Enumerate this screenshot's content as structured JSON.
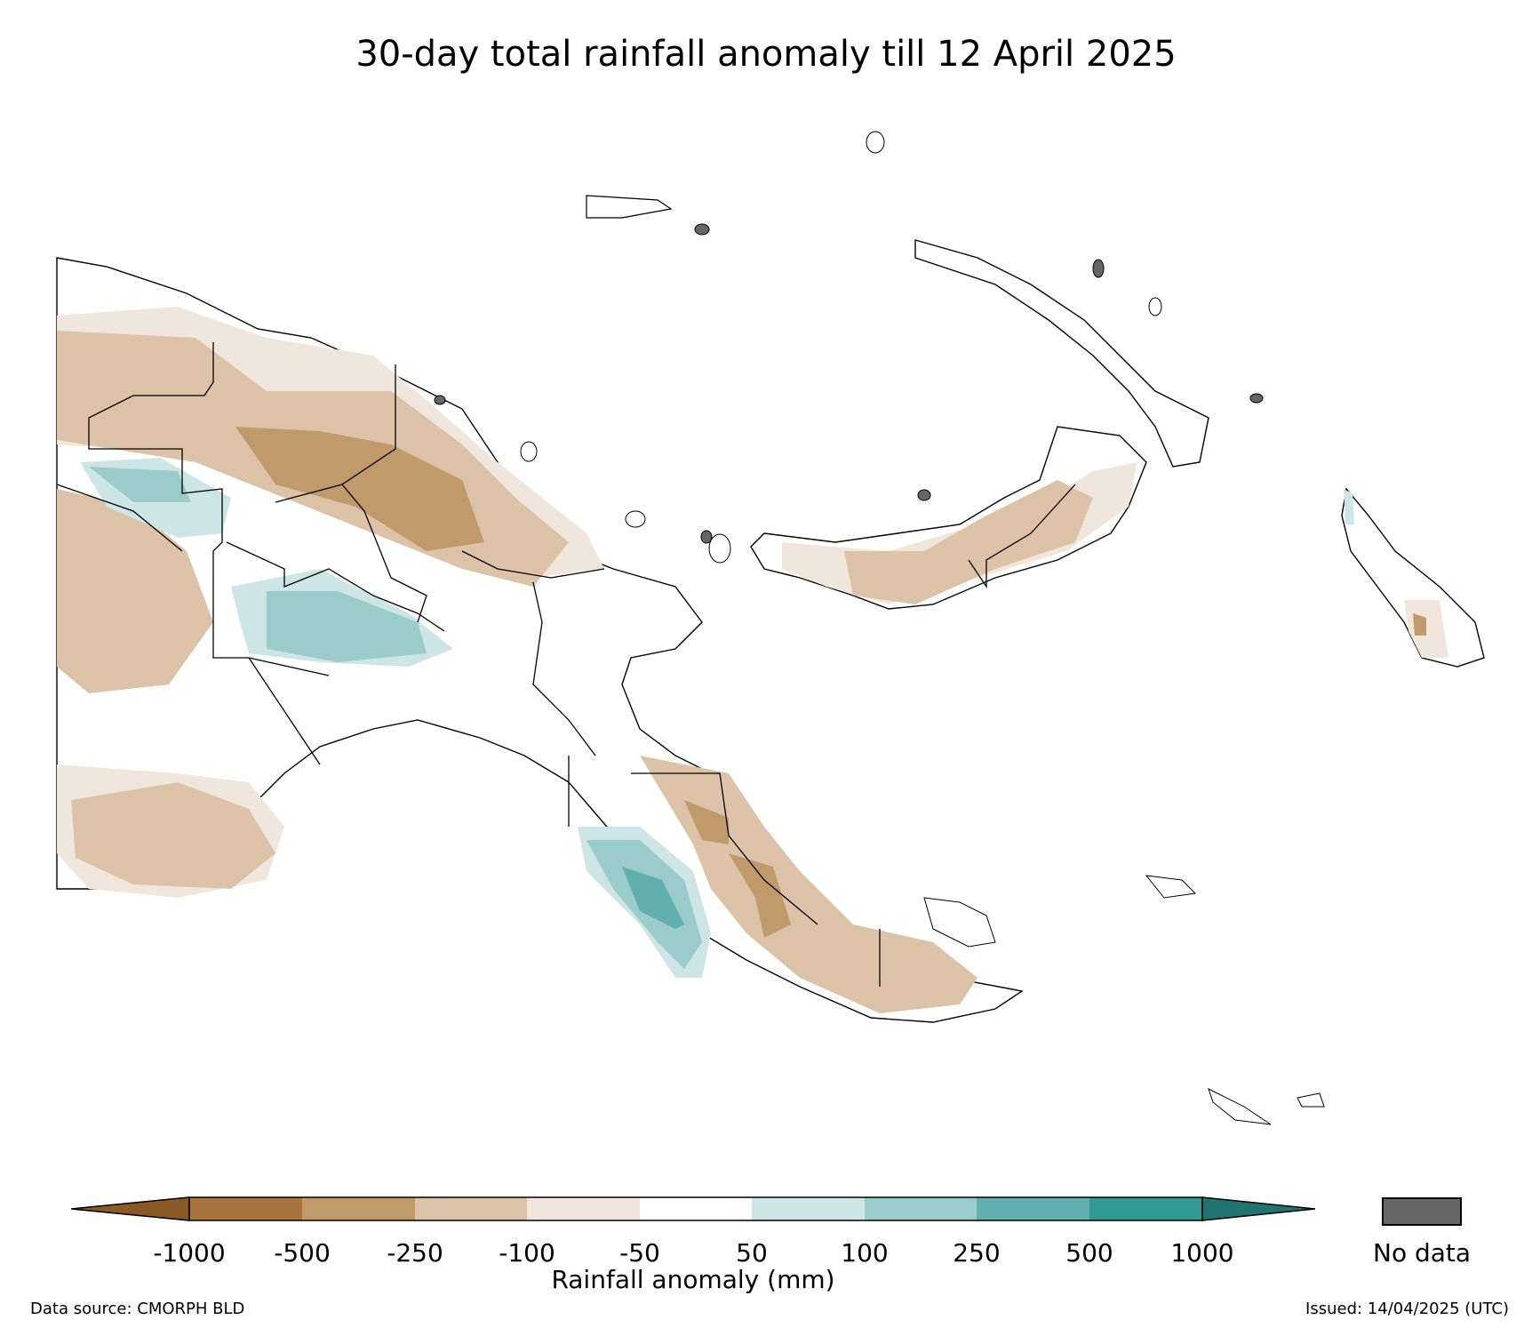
{
  "title": "30-day total rainfall anomaly till 12 April 2025",
  "colorbar": {
    "ticks": [
      "-1000",
      "-500",
      "-250",
      "-100",
      "-50",
      "50",
      "100",
      "250",
      "500",
      "1000"
    ],
    "colors": [
      "#8a5a26",
      "#a9733d",
      "#c19a6b",
      "#dcc3a8",
      "#f1e6dc",
      "#ffffff",
      "#cde5e5",
      "#9bcccc",
      "#62b0ae",
      "#2f9992",
      "#1f7470"
    ],
    "label": "Rainfall anomaly (mm)"
  },
  "legend": {
    "no_data_label": "No data",
    "no_data_color": "#666666"
  },
  "footer": {
    "source": "Data source: CMORPH BLD",
    "issued": "Issued: 14/04/2025 (UTC)"
  },
  "anomaly_colors": {
    "minus_500": "#c19a6b",
    "minus_250": "#dcc3a8",
    "minus_100": "#f1e6dc",
    "plus_100": "#cde5e5",
    "plus_250": "#9bcccc",
    "plus_500": "#62b0ae"
  }
}
